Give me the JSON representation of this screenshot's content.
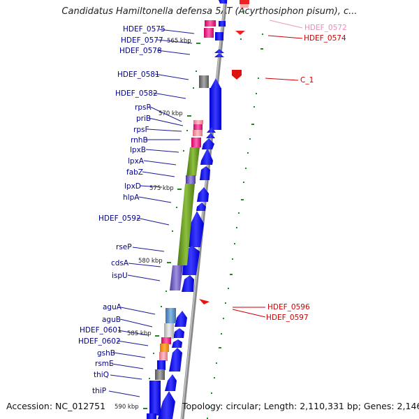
{
  "title": "Candidatus Hamiltonella defensa 5AT (Acyrthosiphon pisum), c...",
  "footer": {
    "accession": "Accession: NC_012751",
    "topology": "Topology: circular; Length: 2,110,331 bp; Genes: 2,146"
  },
  "scale_labels": [
    "565 kbp",
    "570 kbp",
    "575 kbp",
    "580 kbp",
    "585 kbp",
    "590 kbp"
  ],
  "left_genes": [
    "HDEF_0575",
    "HDEF_0577",
    "HDEF_0578",
    "HDEF_0581",
    "HDEF_0582",
    "rpsR",
    "priB",
    "rpsF",
    "rnhB",
    "lpxB",
    "lpxA",
    "fabZ",
    "lpxD",
    "hlpA",
    "HDEF_0592",
    "rseP",
    "cdsA",
    "ispU",
    "aguA",
    "aguB",
    "HDEF_0601",
    "HDEF_0602",
    "gshB",
    "rsmE",
    "thiQ",
    "thiP"
  ],
  "right_genes": [
    "HDEF_0572",
    "HDEF_0574",
    "C_1",
    "HDEF_0596",
    "HDEF_0597"
  ],
  "colors": {
    "label_blue": "#00008b",
    "label_red": "#cc0000",
    "label_pink": "#ee88bb",
    "gene_blue": "#0000ee",
    "backbone": "#909090",
    "tick_green": "#1f8a1f",
    "rna_red": "#ee0000"
  }
}
